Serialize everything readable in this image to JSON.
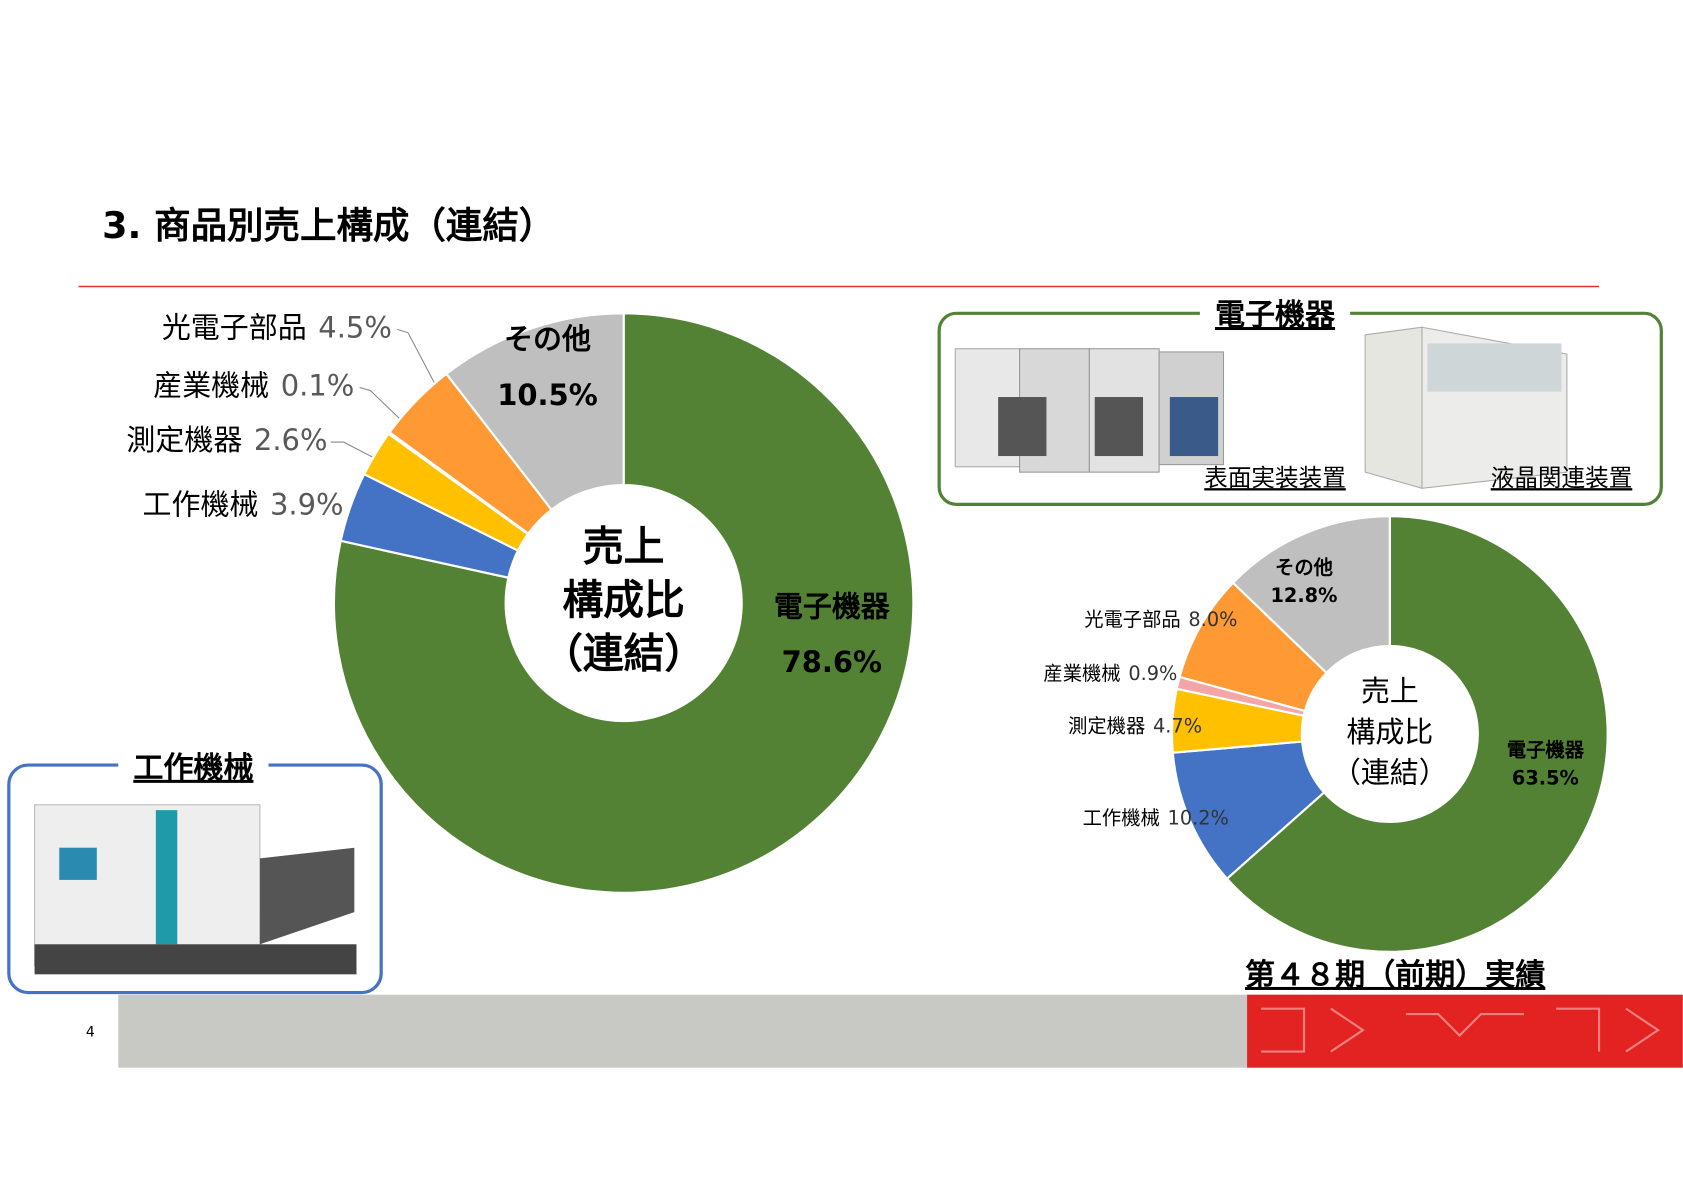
{
  "slide": {
    "title": "3. 商品別売上構成（連結）",
    "page_number": "4",
    "photo_boxes": [
      {
        "title": "電子機器",
        "captions": [
          "表面実装装置",
          "液晶関連装置"
        ]
      },
      {
        "title": "工作機械"
      }
    ]
  },
  "chart_data": [
    {
      "type": "donut",
      "center_label": [
        "売上",
        "構成比",
        "（連結）"
      ],
      "categories": [
        "電子機器",
        "工作機械",
        "測定機器",
        "産業機械",
        "光電子部品",
        "その他"
      ],
      "values": [
        78.6,
        3.9,
        2.6,
        0.1,
        4.5,
        10.5
      ],
      "value_labels": [
        "78.6%",
        "3.9%",
        "2.6%",
        "0.1%",
        "4.5%",
        "10.5%"
      ],
      "colors": [
        "#548235",
        "#4472c4",
        "#ffc000",
        "#f4a6a6",
        "#ff9933",
        "#bfbfbf"
      ]
    },
    {
      "type": "donut",
      "center_label": [
        "売上",
        "構成比",
        "（連結）"
      ],
      "caption": "第４８期（前期）実績",
      "categories": [
        "電子機器",
        "工作機械",
        "測定機器",
        "産業機械",
        "光電子部品",
        "その他"
      ],
      "values": [
        63.5,
        10.2,
        4.7,
        0.9,
        8.0,
        12.8
      ],
      "value_labels": [
        "63.5%",
        "10.2%",
        "4.7%",
        "0.9%",
        "8.0%",
        "12.8%"
      ],
      "colors": [
        "#548235",
        "#4472c4",
        "#ffc000",
        "#f4a6a6",
        "#ff9933",
        "#bfbfbf"
      ]
    }
  ]
}
